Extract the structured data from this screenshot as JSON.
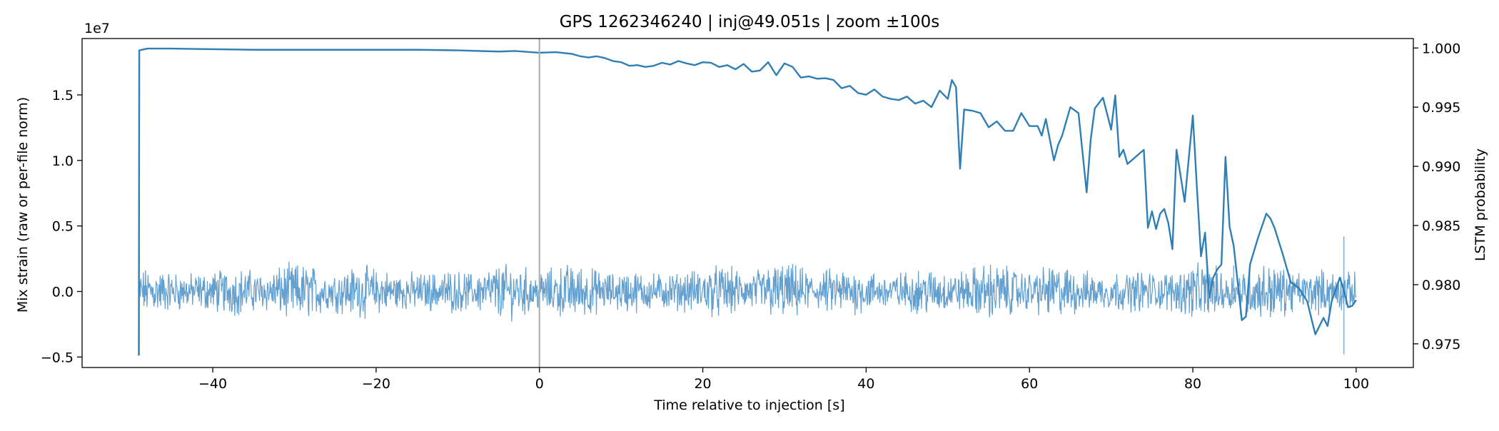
{
  "chart_data": {
    "type": "line",
    "title": "GPS 1262346240 | inj@49.051s | zoom ±100s",
    "xlabel": "Time relative to injection [s]",
    "ylabel_left": "Mix strain (raw or per-file norm)",
    "ylabel_right": "LSTM probability",
    "left_axis_offset_text": "1e7",
    "xlim": [
      -56,
      107
    ],
    "ylim_left": [
      -0.58,
      1.93
    ],
    "ylim_right": [
      0.973,
      1.0008
    ],
    "x_ticks": [
      -40,
      -20,
      0,
      20,
      40,
      60,
      80,
      100
    ],
    "x_tick_labels": [
      "−40",
      "−20",
      "0",
      "20",
      "40",
      "60",
      "80",
      "100"
    ],
    "y_left_ticks": [
      -0.5,
      0,
      0.5,
      1.0,
      1.5
    ],
    "y_left_tick_labels": [
      "−0.5",
      "0.0",
      "0.5",
      "1.0",
      "1.5"
    ],
    "y_right_ticks": [
      0.975,
      0.98,
      0.985,
      0.99,
      0.995,
      1.0
    ],
    "y_right_tick_labels": [
      "0.975",
      "0.980",
      "0.985",
      "0.990",
      "0.995",
      "1.000"
    ],
    "grid": false,
    "injection_line_x": 0,
    "colors": {
      "strain": "#5b9bcc",
      "probability": "#2f7fb5",
      "injection_line": "#b0b0b0"
    },
    "series": [
      {
        "axis": "left",
        "description_type": "noisy strain trace (approximate envelope)",
        "x_range": [
          -49.05,
          100
        ],
        "typical_amplitude": [
          -0.18,
          0.18
        ],
        "spikes": [
          {
            "x": -49.0,
            "y": -0.48
          },
          {
            "x": -49.0,
            "y": 0.26
          },
          {
            "x": 98.5,
            "y": -0.48
          },
          {
            "x": 98.5,
            "y": 0.42
          },
          {
            "x": 80.0,
            "y": 0.16
          },
          {
            "x": 85.0,
            "y": 0.2
          }
        ]
      },
      {
        "axis": "right",
        "x": [
          -49.05,
          -49.0,
          -48,
          -45,
          -40,
          -35,
          -30,
          -25,
          -20,
          -15,
          -10,
          -5,
          -3,
          0,
          2,
          4,
          5,
          6,
          7,
          8,
          9,
          10,
          11,
          12,
          13,
          14,
          15,
          16,
          17,
          18,
          19,
          20,
          21,
          22,
          23,
          24,
          25,
          26,
          27,
          28,
          29,
          30,
          31,
          32,
          33,
          34,
          35,
          36,
          37,
          38,
          39,
          40,
          41,
          42,
          43,
          44,
          45,
          46,
          47,
          48,
          49,
          50,
          50.5,
          51,
          51.5,
          52,
          53,
          54,
          55,
          56,
          57,
          58,
          59,
          60,
          61,
          61.5,
          62,
          63,
          63.5,
          64,
          65,
          66,
          67,
          67.5,
          68,
          69,
          70,
          70.5,
          71,
          71.5,
          72,
          73,
          74,
          74.5,
          75,
          75.5,
          76,
          76.5,
          77,
          77.5,
          78,
          79,
          80,
          80.5,
          81,
          81.5,
          82,
          82.5,
          83,
          83.5,
          84,
          84.5,
          85,
          86,
          86.5,
          87,
          88,
          89,
          89.5,
          90,
          91,
          92,
          93,
          94,
          95,
          96,
          96.5,
          97,
          98,
          98.5,
          99,
          99.5,
          100
        ],
        "values": [
          0.974,
          0.9998,
          0.99995,
          0.99995,
          0.9999,
          0.99985,
          0.99985,
          0.99985,
          0.99985,
          0.99985,
          0.9998,
          0.9997,
          0.99975,
          0.9996,
          0.99965,
          0.9995,
          0.9993,
          0.9992,
          0.9993,
          0.99915,
          0.9989,
          0.9988,
          0.9985,
          0.99855,
          0.9984,
          0.9985,
          0.99875,
          0.9986,
          0.9989,
          0.9987,
          0.99855,
          0.9988,
          0.99875,
          0.9984,
          0.99855,
          0.9982,
          0.99865,
          0.998,
          0.9981,
          0.9988,
          0.9977,
          0.9987,
          0.9984,
          0.9975,
          0.9976,
          0.9974,
          0.99745,
          0.9973,
          0.9966,
          0.9968,
          0.9962,
          0.99605,
          0.9965,
          0.9959,
          0.9957,
          0.9956,
          0.9959,
          0.9953,
          0.99555,
          0.995,
          0.9964,
          0.9957,
          0.9973,
          0.9967,
          0.9898,
          0.9948,
          0.9947,
          0.9945,
          0.9933,
          0.9938,
          0.993,
          0.993,
          0.9945,
          0.9934,
          0.9934,
          0.9926,
          0.994,
          0.9905,
          0.9918,
          0.9926,
          0.995,
          0.9945,
          0.9878,
          0.9923,
          0.9949,
          0.9958,
          0.9931,
          0.996,
          0.9908,
          0.9914,
          0.9902,
          0.9908,
          0.9914,
          0.9848,
          0.9862,
          0.9847,
          0.986,
          0.9864,
          0.9852,
          0.983,
          0.9914,
          0.987,
          0.9943,
          0.9882,
          0.9824,
          0.9844,
          0.9789,
          0.9806,
          0.9813,
          0.9817,
          0.9908,
          0.9849,
          0.9833,
          0.977,
          0.9773,
          0.9817,
          0.984,
          0.986,
          0.9856,
          0.9848,
          0.9826,
          0.9802,
          0.9797,
          0.9786,
          0.9758,
          0.9772,
          0.9765,
          0.9786,
          0.9806,
          0.9795,
          0.9781,
          0.9782,
          0.9787
        ]
      }
    ]
  }
}
